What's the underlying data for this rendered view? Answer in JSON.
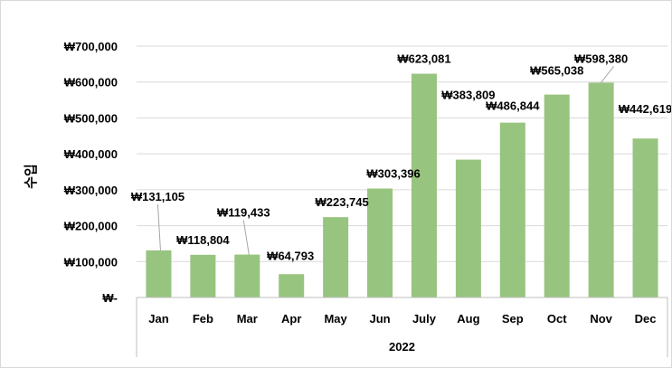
{
  "chart_data": {
    "type": "bar",
    "title": "",
    "xlabel": "2022",
    "ylabel": "수입",
    "ylim": [
      0,
      700000
    ],
    "yticks": [
      0,
      100000,
      200000,
      300000,
      400000,
      500000,
      600000,
      700000
    ],
    "ytick_labels": [
      "₩-",
      "₩100,000",
      "₩200,000",
      "₩300,000",
      "₩400,000",
      "₩500,000",
      "₩600,000",
      "₩700,000"
    ],
    "categories": [
      "Jan",
      "Feb",
      "Mar",
      "Apr",
      "May",
      "Jun",
      "July",
      "Aug",
      "Sep",
      "Oct",
      "Nov",
      "Dec"
    ],
    "values": [
      131105,
      118804,
      119433,
      64793,
      223745,
      303396,
      623081,
      383809,
      486844,
      565038,
      598380,
      442619
    ],
    "value_labels": [
      "₩131,105",
      "₩118,804",
      "₩119,433",
      "₩64,793",
      "₩223,745",
      "₩303,396",
      "₩623,081",
      "₩383,809",
      "₩486,844",
      "₩565,038",
      "₩598,380",
      "₩442,619"
    ],
    "bar_color": "#97c47e",
    "gridlines": true,
    "gridline_color": "#d9d9d9"
  }
}
